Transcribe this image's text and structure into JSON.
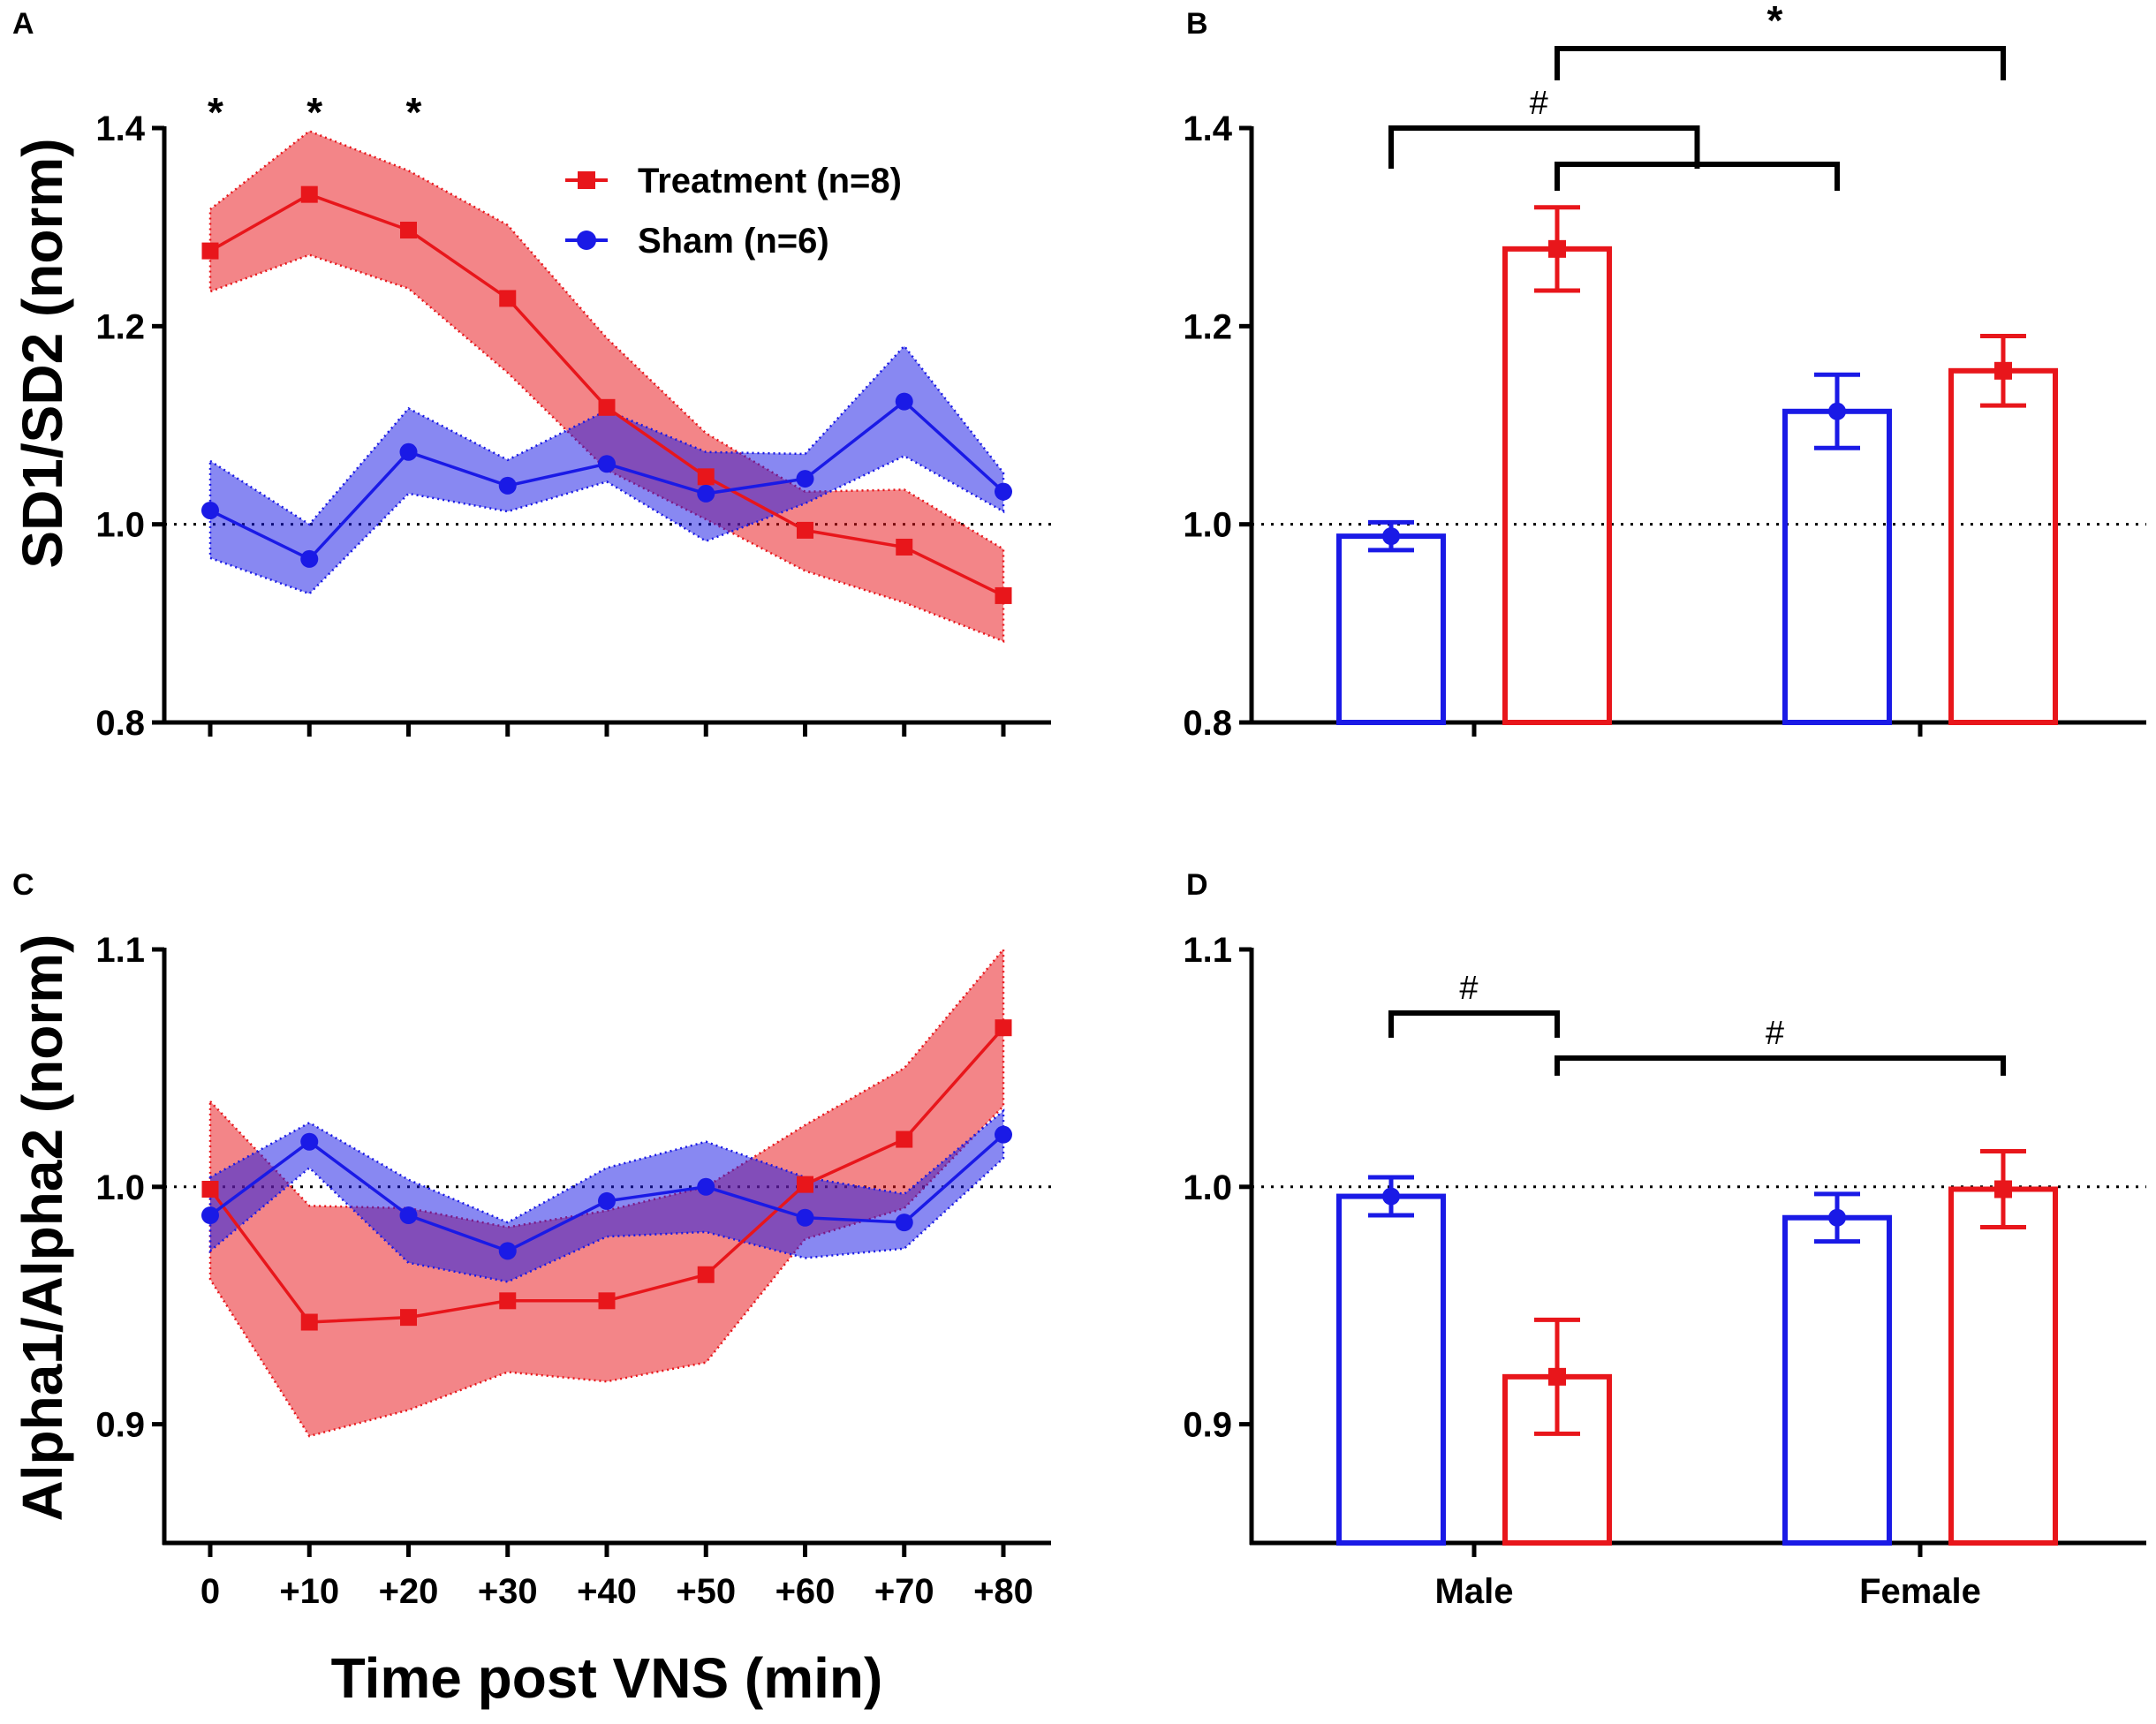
{
  "colors": {
    "treatment": "#e8161b",
    "sham": "#1a1ae6",
    "axis": "#000000"
  },
  "legend": [
    {
      "label": "Treatment (n=8)",
      "marker": "square",
      "series": "treatment"
    },
    {
      "label": "Sham (n=6)",
      "marker": "circle",
      "series": "sham"
    }
  ],
  "shared_x_title": "Time post VNS (min)",
  "chart_data": [
    {
      "panel": "A",
      "type": "line",
      "title": "",
      "xlabel": "",
      "ylabel": "SD1/SD2 (norm)",
      "ylim": [
        0.8,
        1.4
      ],
      "yticks": [
        0.8,
        1.0,
        1.2,
        1.4
      ],
      "ytick_labels": [
        "0.8",
        "1.0",
        "1.2",
        "1.4"
      ],
      "categories": [
        "0",
        "+10",
        "+20",
        "+30",
        "+40",
        "+50",
        "+60",
        "+70",
        "+80"
      ],
      "show_tick_labels": false,
      "reference_line": 1.0,
      "series": [
        {
          "name": "Treatment (n=8)",
          "color": "treatment",
          "marker": "square",
          "values": [
            1.276,
            1.333,
            1.297,
            1.228,
            1.118,
            1.048,
            0.994,
            0.977,
            0.928
          ],
          "upper": [
            1.318,
            1.397,
            1.357,
            1.302,
            1.188,
            1.092,
            1.033,
            1.035,
            0.975
          ],
          "lower": [
            1.235,
            1.272,
            1.238,
            1.153,
            1.055,
            1.005,
            0.953,
            0.921,
            0.882
          ]
        },
        {
          "name": "Sham (n=6)",
          "color": "sham",
          "marker": "circle",
          "values": [
            1.014,
            0.965,
            1.073,
            1.039,
            1.061,
            1.031,
            1.046,
            1.124,
            1.033
          ],
          "upper": [
            1.064,
            1.0,
            1.117,
            1.065,
            1.115,
            1.073,
            1.071,
            1.18,
            1.052
          ],
          "lower": [
            0.966,
            0.93,
            1.031,
            1.013,
            1.043,
            0.983,
            1.021,
            1.069,
            1.013
          ]
        }
      ],
      "annotations": [
        {
          "text": "*",
          "category": "0"
        },
        {
          "text": "*",
          "category": "+10"
        },
        {
          "text": "*",
          "category": "+20"
        }
      ]
    },
    {
      "panel": "B",
      "type": "bar",
      "title": "",
      "xlabel": "",
      "ylabel": "",
      "ylim": [
        0.8,
        1.4
      ],
      "yticks": [
        0.8,
        1.0,
        1.2,
        1.4
      ],
      "ytick_labels": [
        "0.8",
        "1.0",
        "1.2",
        "1.4"
      ],
      "categories": [
        "Male",
        "Female"
      ],
      "show_tick_labels": false,
      "reference_line": 1.0,
      "series": [
        {
          "name": "Sham",
          "color": "sham",
          "marker": "circle",
          "values": [
            0.988,
            1.114
          ],
          "errors": [
            0.014,
            0.037
          ]
        },
        {
          "name": "Treatment",
          "color": "treatment",
          "marker": "square",
          "values": [
            1.278,
            1.155
          ],
          "errors": [
            0.042,
            0.035
          ]
        }
      ],
      "annotations": [
        {
          "text": "#",
          "type": "bracket",
          "from": "Male-Sham",
          "to": "midpoint(Male-Treatment, Female-Sham)"
        },
        {
          "text": "",
          "type": "bracket",
          "from": "Male-Treatment",
          "to": "Female-Sham"
        },
        {
          "text": "*",
          "type": "bracket",
          "from": "Male-Treatment",
          "to": "Female-Treatment"
        }
      ]
    },
    {
      "panel": "C",
      "type": "line",
      "title": "",
      "xlabel": "Time post VNS (min)",
      "ylabel": "Alpha1/Alpha2 (norm)",
      "ylim": [
        0.85,
        1.1
      ],
      "yticks": [
        0.9,
        1.0,
        1.1
      ],
      "ytick_labels": [
        "0.9",
        "1.0",
        "1.1"
      ],
      "categories": [
        "0",
        "+10",
        "+20",
        "+30",
        "+40",
        "+50",
        "+60",
        "+70",
        "+80"
      ],
      "show_tick_labels": true,
      "reference_line": 1.0,
      "series": [
        {
          "name": "Treatment (n=8)",
          "color": "treatment",
          "marker": "square",
          "values": [
            0.999,
            0.943,
            0.945,
            0.952,
            0.952,
            0.963,
            1.001,
            1.02,
            1.067
          ],
          "upper": [
            1.036,
            0.992,
            0.991,
            0.983,
            0.99,
            1.0,
            1.026,
            1.05,
            1.1
          ],
          "lower": [
            0.961,
            0.895,
            0.906,
            0.922,
            0.918,
            0.926,
            0.978,
            0.991,
            1.034
          ]
        },
        {
          "name": "Sham (n=6)",
          "color": "sham",
          "marker": "circle",
          "values": [
            0.988,
            1.019,
            0.988,
            0.973,
            0.994,
            1.0,
            0.987,
            0.985,
            1.022
          ],
          "upper": [
            1.004,
            1.027,
            1.003,
            0.985,
            1.008,
            1.019,
            1.004,
            0.997,
            1.032
          ],
          "lower": [
            0.973,
            1.008,
            0.968,
            0.96,
            0.979,
            0.981,
            0.97,
            0.974,
            1.012
          ]
        }
      ],
      "annotations": []
    },
    {
      "panel": "D",
      "type": "bar",
      "title": "",
      "xlabel": "",
      "ylabel": "",
      "ylim": [
        0.85,
        1.1
      ],
      "yticks": [
        0.9,
        1.0,
        1.1
      ],
      "ytick_labels": [
        "0.9",
        "1.0",
        "1.1"
      ],
      "categories": [
        "Male",
        "Female"
      ],
      "show_tick_labels": true,
      "reference_line": 1.0,
      "series": [
        {
          "name": "Sham",
          "color": "sham",
          "marker": "circle",
          "values": [
            0.996,
            0.987
          ],
          "errors": [
            0.008,
            0.01
          ]
        },
        {
          "name": "Treatment",
          "color": "treatment",
          "marker": "square",
          "values": [
            0.92,
            0.999
          ],
          "errors": [
            0.024,
            0.016
          ]
        }
      ],
      "annotations": [
        {
          "text": "#",
          "type": "bracket",
          "from": "Male-Sham",
          "to": "Male-Treatment"
        },
        {
          "text": "#",
          "type": "bracket",
          "from": "Male-Treatment",
          "to": "Female-Treatment"
        }
      ]
    }
  ]
}
